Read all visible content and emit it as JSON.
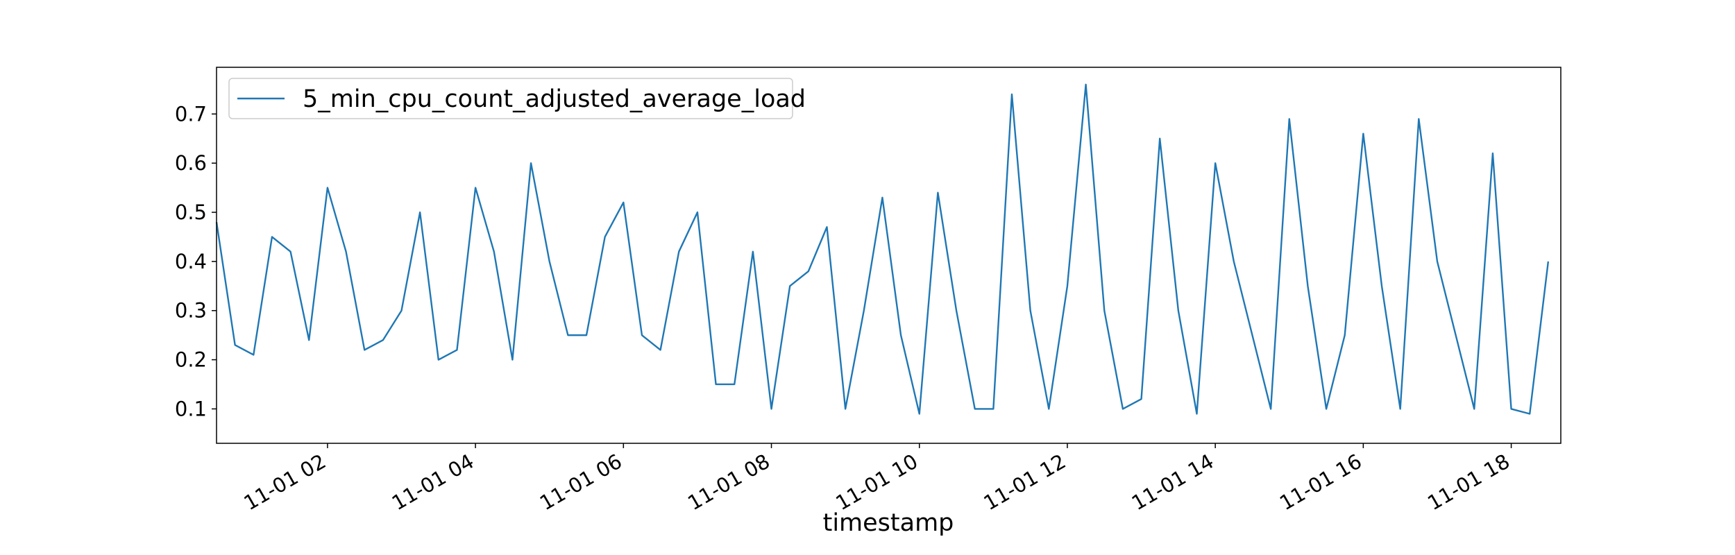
{
  "chart_data": {
    "type": "line",
    "xlabel": "timestamp",
    "x": [
      0.5,
      0.75,
      1,
      1.25,
      1.5,
      1.75,
      2,
      2.25,
      2.5,
      2.75,
      3,
      3.25,
      3.5,
      3.75,
      4,
      4.25,
      4.5,
      4.75,
      5,
      5.25,
      5.5,
      5.75,
      6,
      6.25,
      6.5,
      6.75,
      7,
      7.25,
      7.5,
      7.75,
      8,
      8.25,
      8.5,
      8.75,
      9,
      9.25,
      9.5,
      9.75,
      10,
      10.25,
      10.5,
      10.75,
      11,
      11.25,
      11.5,
      11.75,
      12,
      12.25,
      12.5,
      12.75,
      13,
      13.25,
      13.5,
      13.75,
      14,
      14.25,
      14.5,
      14.75,
      15,
      15.25,
      15.5,
      15.75,
      16,
      16.25,
      16.5,
      16.75,
      17,
      17.25,
      17.5,
      17.75,
      18,
      18.25,
      18.5
    ],
    "series": [
      {
        "name": "5_min_cpu_count_adjusted_average_load",
        "color": "#1f77b4",
        "values": [
          0.48,
          0.23,
          0.21,
          0.45,
          0.42,
          0.24,
          0.55,
          0.42,
          0.22,
          0.24,
          0.3,
          0.5,
          0.2,
          0.22,
          0.55,
          0.42,
          0.2,
          0.6,
          0.4,
          0.25,
          0.25,
          0.45,
          0.52,
          0.25,
          0.22,
          0.42,
          0.5,
          0.15,
          0.15,
          0.42,
          0.1,
          0.35,
          0.38,
          0.47,
          0.1,
          0.3,
          0.53,
          0.25,
          0.09,
          0.54,
          0.3,
          0.1,
          0.1,
          0.74,
          0.3,
          0.1,
          0.35,
          0.76,
          0.3,
          0.1,
          0.12,
          0.65,
          0.3,
          0.09,
          0.6,
          0.4,
          0.25,
          0.1,
          0.69,
          0.35,
          0.1,
          0.25,
          0.66,
          0.35,
          0.1,
          0.69,
          0.4,
          0.25,
          0.1,
          0.62,
          0.1,
          0.09,
          0.4
        ]
      }
    ],
    "xlim": [
      0.5,
      18.67
    ],
    "xticks": [
      {
        "value": 2,
        "label": "11-01 02"
      },
      {
        "value": 4,
        "label": "11-01 04"
      },
      {
        "value": 6,
        "label": "11-01 06"
      },
      {
        "value": 8,
        "label": "11-01 08"
      },
      {
        "value": 10,
        "label": "11-01 10"
      },
      {
        "value": 12,
        "label": "11-01 12"
      },
      {
        "value": 14,
        "label": "11-01 14"
      },
      {
        "value": 16,
        "label": "11-01 16"
      },
      {
        "value": 18,
        "label": "11-01 18"
      }
    ],
    "ylim": [
      0.03,
      0.795
    ],
    "yticks": [
      0.1,
      0.2,
      0.3,
      0.4,
      0.5,
      0.6,
      0.7
    ],
    "legend": "upper left"
  }
}
